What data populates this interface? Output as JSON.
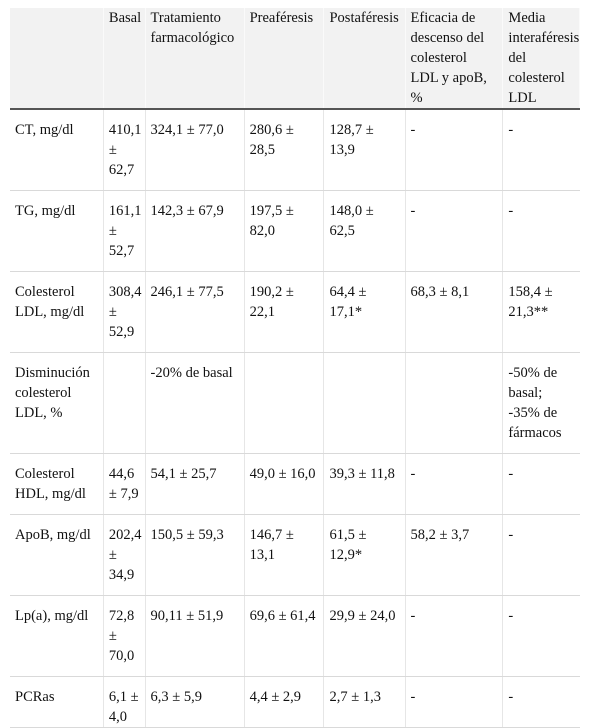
{
  "table": {
    "headers": [
      "",
      "Basal",
      "Tratamiento farmacológico",
      "Preaféresis",
      "Postaféresis",
      "Eficacia de descenso del colesterol LDL y apoB, %",
      "Media interaféresis del colesterol LDL"
    ],
    "rows": [
      [
        "CT, mg/dl",
        "410,1 ± 62,7",
        "324,1 ± 77,0",
        "280,6 ± 28,5",
        "128,7 ± 13,9",
        "-",
        "-"
      ],
      [
        "TG, mg/dl",
        "161,1 ± 52,7",
        "142,3 ± 67,9",
        "197,5 ± 82,0",
        "148,0 ± 62,5",
        "-",
        "-"
      ],
      [
        "Colesterol LDL, mg/dl",
        "308,4 ± 52,9",
        "246,1 ± 77,5",
        "190,2 ± 22,1",
        "64,4 ± 17,1*",
        "68,3 ± 8,1",
        "158,4 ± 21,3**"
      ],
      [
        "Disminución colesterol LDL, %",
        "",
        "-20% de basal",
        "",
        "",
        "",
        "-50% de basal; -35% de fármacos"
      ],
      [
        "Colesterol HDL, mg/dl",
        "44,6 ± 7,9",
        "54,1 ± 25,7",
        "49,0 ± 16,0",
        "39,3 ± 11,8",
        "-",
        "-"
      ],
      [
        "ApoB, mg/dl",
        "202,4 ± 34,9",
        "150,5 ± 59,3",
        "146,7 ± 13,1",
        "61,5 ± 12,9*",
        "58,2 ± 3,7",
        "-"
      ],
      [
        "Lp(a), mg/dl",
        "72,8 ± 70,0",
        "90,11 ± 51,9",
        "69,6 ± 61,4",
        "29,9 ± 24,0",
        "-",
        "-"
      ],
      [
        "PCRas",
        "6,1 ± 4,0",
        "6,3 ± 5,9",
        "4,4 ± 2,9",
        "2,7 ± 1,3",
        "-",
        "-"
      ]
    ]
  }
}
